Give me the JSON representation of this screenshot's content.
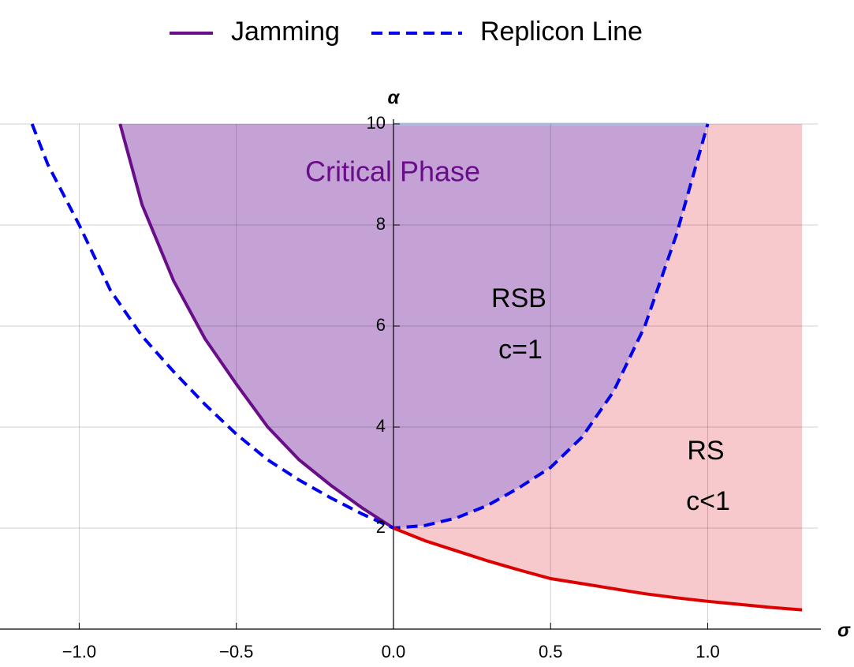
{
  "chart_data": {
    "type": "line",
    "xlabel": "σ",
    "ylabel": "α",
    "xlim": [
      -1.252,
      1.35
    ],
    "ylim": [
      0,
      10
    ],
    "xticks": [
      {
        "value": -1,
        "label": "−1.0"
      },
      {
        "value": -0.5,
        "label": "−0.5"
      },
      {
        "value": 0,
        "label": "0.0"
      },
      {
        "value": 0.5,
        "label": "0.5"
      },
      {
        "value": 1,
        "label": "1.0"
      }
    ],
    "yticks": [
      2,
      4,
      6,
      8,
      10
    ],
    "grid": true,
    "legend": "top",
    "annotations": [
      "Critical Phase",
      "RSB",
      "c=1",
      "RS",
      "c<1"
    ],
    "series": [
      {
        "name": "Jamming",
        "color": "#6a0d8a",
        "fill": "#c5a2d6",
        "x": [
          -0.87,
          -0.8,
          -0.7,
          -0.6,
          -0.5,
          -0.4,
          -0.3,
          -0.2,
          -0.1,
          0
        ],
        "values": [
          10,
          8.4,
          6.9,
          5.75,
          4.85,
          4.0,
          3.35,
          2.85,
          2.4,
          2
        ]
      },
      {
        "name": "Replicon Line",
        "color": "#0000ee",
        "dashed": true,
        "x": [
          -1.15,
          -1.1,
          -1.0,
          -0.9,
          -0.8,
          -0.7,
          -0.6,
          -0.5,
          -0.4,
          -0.3,
          -0.2,
          -0.1,
          0,
          0.1,
          0.2,
          0.3,
          0.4,
          0.5,
          0.6,
          0.7,
          0.8,
          0.9,
          1.0
        ],
        "values": [
          10,
          9.2,
          8,
          6.7,
          5.8,
          5.1,
          4.45,
          3.86,
          3.35,
          2.95,
          2.6,
          2.28,
          2,
          2.05,
          2.2,
          2.45,
          2.8,
          3.2,
          3.8,
          4.7,
          6.0,
          7.8,
          10
        ]
      },
      {
        "color": "#dd0000",
        "fill": "#f7c9cc",
        "x": [
          0,
          0.1,
          0.2,
          0.3,
          0.4,
          0.5,
          0.6,
          0.7,
          0.8,
          0.9,
          1.0,
          1.1,
          1.2,
          1.3
        ],
        "values": [
          2,
          1.75,
          1.55,
          1.35,
          1.17,
          1.0,
          0.9,
          0.8,
          0.7,
          0.62,
          0.55,
          0.49,
          0.43,
          0.38
        ]
      }
    ]
  }
}
